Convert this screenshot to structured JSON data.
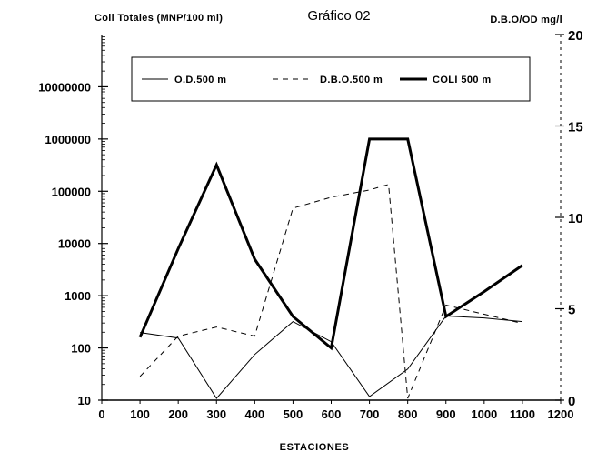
{
  "chart_data": {
    "type": "line",
    "title": "Gráfico 02",
    "left_axis_title": "Coli Totales (MNP/100 ml)",
    "right_axis_title": "D.B.O/OD mg/l",
    "xlabel": "ESTACIONES",
    "x_ticks": [
      0,
      100,
      200,
      300,
      400,
      500,
      600,
      700,
      800,
      900,
      1000,
      1100,
      1200
    ],
    "xlim": [
      0,
      1200
    ],
    "left_scale": "log",
    "left_ticks": [
      "10",
      "100",
      "1000",
      "10000",
      "100000",
      "1000000",
      "10000000"
    ],
    "left_tick_values": [
      10,
      100,
      1000,
      10000,
      100000,
      1000000,
      10000000
    ],
    "ylim_left": [
      10,
      100000000
    ],
    "right_ticks": [
      0,
      5,
      10,
      15,
      20
    ],
    "ylim_right": [
      0,
      20
    ],
    "legend_position": "top",
    "grid": false,
    "series": [
      {
        "name": "O.D.500 m",
        "axis": "right",
        "style": "thin-solid",
        "x": [
          100,
          200,
          300,
          400,
          500,
          600,
          700,
          800,
          900,
          1000,
          1100
        ],
        "values": [
          3.7,
          3.4,
          0.1,
          2.5,
          4.3,
          3.2,
          0.2,
          1.7,
          4.6,
          4.5,
          4.3
        ]
      },
      {
        "name": "D.B.O.500 m",
        "axis": "right",
        "style": "dashed",
        "x": [
          100,
          200,
          300,
          400,
          500,
          600,
          700,
          750,
          800,
          900,
          1000,
          1100
        ],
        "values": [
          1.3,
          3.5,
          4.0,
          3.5,
          10.5,
          11.1,
          11.5,
          11.8,
          0.1,
          5.2,
          4.7,
          4.2
        ]
      },
      {
        "name": "COLI 500 m",
        "axis": "left",
        "style": "thick-solid",
        "x": [
          100,
          200,
          300,
          400,
          500,
          600,
          700,
          800,
          900,
          1000,
          1100
        ],
        "values": [
          160,
          8000,
          320000,
          5000,
          400,
          100,
          1000000,
          1000000,
          400,
          1200,
          3800
        ]
      }
    ]
  }
}
